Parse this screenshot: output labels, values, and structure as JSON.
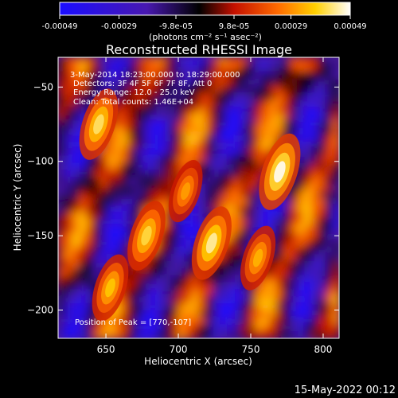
{
  "colorbar": {
    "colormap": "RHESSI blue-purple-red-yellow-white",
    "tick_labels": [
      "-0.00049",
      "-0.00029",
      "-9.8e-05",
      "9.8e-05",
      "0.00029",
      "0.00049"
    ],
    "ticks": [
      -0.00049,
      -0.00029,
      -9.8e-05,
      9.8e-05,
      0.00029,
      0.00049
    ],
    "range": [
      -0.00049,
      0.00049
    ],
    "units": "(photons cm⁻² s⁻¹ asec⁻²)",
    "colors": [
      "#1a0dff",
      "#4818b0",
      "#000000",
      "#c41000",
      "#ff6a00",
      "#ffd000",
      "#ffffff"
    ]
  },
  "chart_data": {
    "type": "heatmap",
    "title": "Reconstructed RHESSI Image",
    "xlabel": "Heliocentric X (arcsec)",
    "ylabel": "Heliocentric Y (arcsec)",
    "xlim": [
      617,
      811
    ],
    "ylim": [
      -219,
      -30
    ],
    "xticks": [
      650,
      700,
      750,
      800
    ],
    "xtick_labels": [
      "650",
      "700",
      "750",
      "800"
    ],
    "yticks": [
      -50,
      -100,
      -150,
      -200
    ],
    "ytick_labels": [
      "−50",
      "−100",
      "−150",
      "−200"
    ],
    "peak": [
      770,
      -107
    ],
    "sources": [
      {
        "x": 770,
        "y": -107,
        "intensity": 0.00049
      },
      {
        "x": 723,
        "y": -155,
        "intensity": 0.00045
      },
      {
        "x": 678,
        "y": -150,
        "intensity": 0.0004
      },
      {
        "x": 645,
        "y": -75,
        "intensity": 0.00042
      },
      {
        "x": 653,
        "y": -185,
        "intensity": 0.00036
      },
      {
        "x": 755,
        "y": -165,
        "intensity": 0.00033
      },
      {
        "x": 705,
        "y": -120,
        "intensity": 0.0003
      }
    ],
    "annotations": {
      "time": "3-May-2014 18:23:00.000 to 18:29:00.000",
      "detectors": "Detectors: 3F 4F 5F 6F 7F 8F, Att 0",
      "energy": "Energy Range: 12.0 - 25.0 keV",
      "clean": "Clean: Total counts: 1.46E+04",
      "peak_label": "Position of Peak = [770,-107]"
    }
  },
  "footer": {
    "date": "15-May-2022 00:12"
  }
}
